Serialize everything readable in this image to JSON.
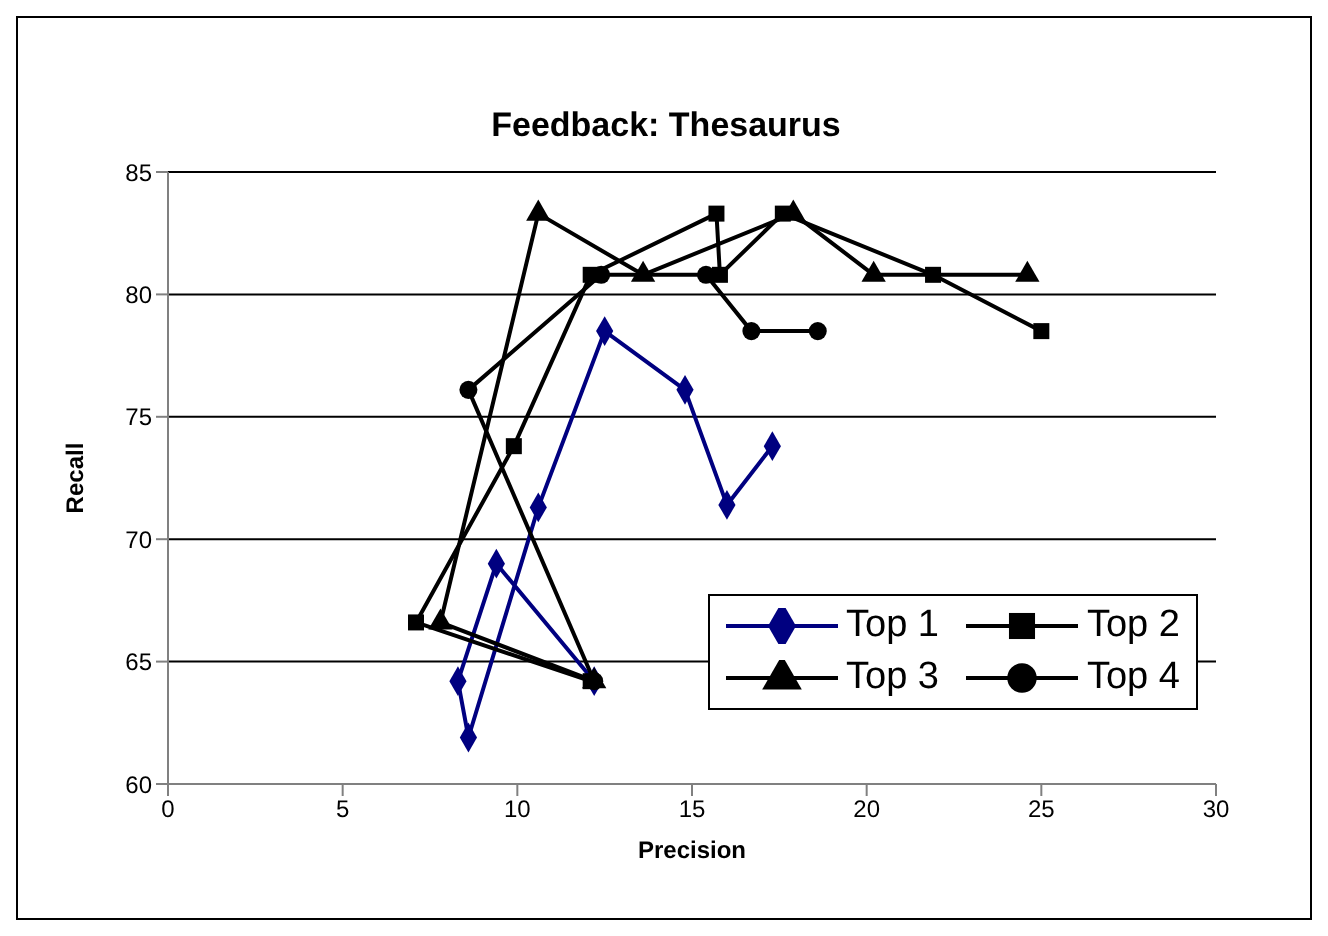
{
  "chart_data": {
    "type": "line",
    "title": "Feedback: Thesaurus",
    "xlabel": "Precision",
    "ylabel": "Recall",
    "xlim": [
      0,
      30
    ],
    "xticks": [
      0,
      5,
      10,
      15,
      20,
      25,
      30
    ],
    "ylim": [
      60,
      85
    ],
    "yticks": [
      60,
      65,
      70,
      75,
      80,
      85
    ],
    "grid": "y",
    "legend": "bottom right",
    "line_style": "solid",
    "series": [
      {
        "name": "Top 1",
        "color": "#000080",
        "marker": "diamond",
        "x": [
          12.2,
          9.4,
          8.3,
          8.6,
          10.6,
          12.5,
          14.8,
          16.0,
          17.3
        ],
        "values": [
          64.2,
          69.0,
          64.2,
          61.9,
          71.3,
          78.5,
          76.1,
          71.4,
          73.8
        ]
      },
      {
        "name": "Top 2",
        "color": "#000000",
        "marker": "square",
        "x": [
          12.1,
          7.1,
          9.9,
          12.1,
          15.7,
          15.8,
          17.6,
          21.9,
          25.0
        ],
        "values": [
          64.2,
          66.6,
          73.8,
          80.8,
          83.3,
          80.8,
          83.3,
          80.8,
          78.5
        ]
      },
      {
        "name": "Top 3",
        "color": "#000000",
        "marker": "triangle",
        "x": [
          12.2,
          7.8,
          10.6,
          13.6,
          17.9,
          20.2,
          24.6
        ],
        "values": [
          64.2,
          66.6,
          83.3,
          80.8,
          83.3,
          80.8,
          80.8
        ]
      },
      {
        "name": "Top 4",
        "color": "#000000",
        "marker": "circle",
        "x": [
          12.2,
          8.6,
          12.4,
          15.4,
          16.7,
          18.6
        ],
        "values": [
          64.2,
          76.1,
          80.8,
          80.8,
          78.5,
          78.5
        ]
      }
    ]
  }
}
